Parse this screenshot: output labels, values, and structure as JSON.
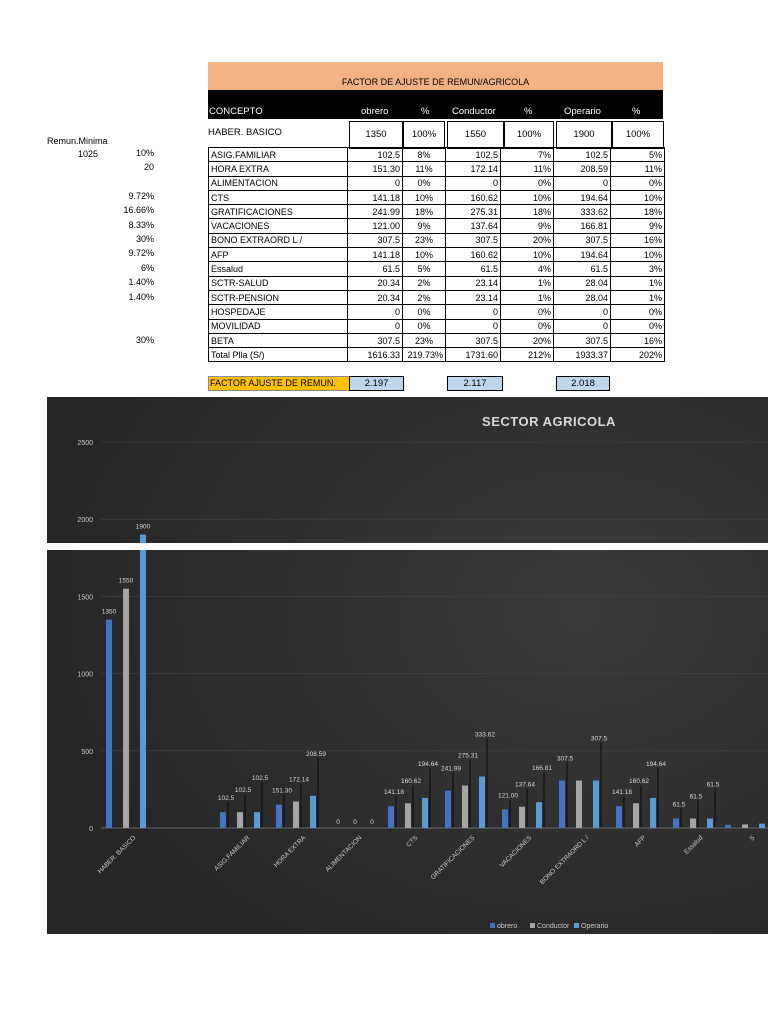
{
  "sheet": {
    "title": "FACTOR DE AJUSTE DE REMUN/AGRICOLA",
    "headers": [
      "CONCEPTO",
      "obrero",
      "%",
      "Conductor",
      "%",
      "Operario",
      "%"
    ],
    "remun_label": "Remun.Minima",
    "remun_value": "1025",
    "basic": {
      "concept": "HABER. BASICO",
      "values": [
        "1350",
        "100%",
        "1550",
        "100%",
        "1900",
        "100%"
      ]
    },
    "rows": [
      {
        "factor": "10%",
        "concept": "ASIG.FAMILIAR",
        "values": [
          "102.5",
          "8%",
          "102.5",
          "7%",
          "102.5",
          "5%"
        ]
      },
      {
        "factor": "20",
        "concept": "HORA EXTRA",
        "values": [
          "151.30",
          "11%",
          "172.14",
          "11%",
          "208.59",
          "11%"
        ]
      },
      {
        "factor": "",
        "concept": "ALIMENTACION",
        "values": [
          "0",
          "0%",
          "0",
          "0%",
          "0",
          "0%"
        ]
      },
      {
        "factor": "9.72%",
        "concept": "CTS",
        "values": [
          "141.18",
          "10%",
          "160.62",
          "10%",
          "194.64",
          "10%"
        ]
      },
      {
        "factor": "16.66%",
        "concept": "GRATIFICACIONES",
        "values": [
          "241.99",
          "18%",
          "275.31",
          "18%",
          "333.62",
          "18%"
        ]
      },
      {
        "factor": "8.33%",
        "concept": "VACACIONES",
        "values": [
          "121.00",
          "9%",
          "137.64",
          "9%",
          "166.81",
          "9%"
        ]
      },
      {
        "factor": "30%",
        "concept": "BONO EXTRAORD L /",
        "values": [
          "307.5",
          "23%",
          "307.5",
          "20%",
          "307.5",
          "16%"
        ]
      },
      {
        "factor": "9.72%",
        "concept": "AFP",
        "values": [
          "141.18",
          "10%",
          "160.62",
          "10%",
          "194.64",
          "10%"
        ]
      },
      {
        "factor": "6%",
        "concept": "Essalud",
        "values": [
          "61.5",
          "5%",
          "61.5",
          "4%",
          "61.5",
          "3%"
        ]
      },
      {
        "factor": "1.40%",
        "concept": "SCTR-SALUD",
        "values": [
          "20.34",
          "2%",
          "23.14",
          "1%",
          "28.04",
          "1%"
        ]
      },
      {
        "factor": "1.40%",
        "concept": "SCTR-PENSION",
        "values": [
          "20.34",
          "2%",
          "23.14",
          "1%",
          "28.04",
          "1%"
        ]
      },
      {
        "factor": "",
        "concept": "HOSPEDAJE",
        "values": [
          "0",
          "0%",
          "0",
          "0%",
          "0",
          "0%"
        ]
      },
      {
        "factor": "",
        "concept": "MOVILIDAD",
        "values": [
          "0",
          "0%",
          "0",
          "0%",
          "0",
          "0%"
        ]
      },
      {
        "factor": "30%",
        "concept": "BETA",
        "values": [
          "307.5",
          "23%",
          "307.5",
          "20%",
          "307.5",
          "16%"
        ]
      },
      {
        "factor": "",
        "concept": "Total Plla (S/)",
        "values": [
          "1616.33",
          "219.73%",
          "1731.60",
          "212%",
          "1933.37",
          "202%"
        ]
      }
    ],
    "factor_label": "FACTOR AJUSTE DE REMUN.",
    "factor_values": [
      "2.197",
      "2.117",
      "2.018"
    ]
  },
  "chart_data": {
    "type": "bar",
    "title": "SECTOR AGRICOLA",
    "categories": [
      "HABER. BASICO",
      "ASIG.FAMILIAR",
      "HORA EXTRA",
      "ALIMENTACION",
      "CTS",
      "GRATIFICACIONES",
      "VACACIONES",
      "BONO EXTRAORD L /",
      "AFP",
      "Essalud",
      "S"
    ],
    "series": [
      {
        "name": "obrero",
        "values": [
          1350,
          102.5,
          151.3,
          0,
          141.18,
          241.99,
          121.0,
          307.5,
          141.18,
          61.5,
          20.34
        ]
      },
      {
        "name": "Conductor",
        "values": [
          1550,
          102.5,
          172.14,
          0,
          160.62,
          275.31,
          137.64,
          307.5,
          160.62,
          61.5,
          23.14
        ]
      },
      {
        "name": "Operario",
        "values": [
          1900,
          102.5,
          208.59,
          0,
          194.64,
          333.62,
          166.81,
          307.5,
          194.64,
          61.5,
          28.04
        ]
      }
    ],
    "data_labels": [
      [
        "1350",
        "102.5",
        "151.30",
        "0",
        "141.18",
        "241.99",
        "121.00",
        "307.5",
        "141.18",
        "61.5",
        ""
      ],
      [
        "1550",
        "102.5",
        "172.14",
        "0",
        "160.62",
        "275.31",
        "137.64",
        "",
        "160.62",
        "61.5",
        ""
      ],
      [
        "1900",
        "102.5",
        "208.59",
        "0",
        "194.64",
        "333.62",
        "166.81",
        "307.5",
        "194.64",
        "61.5",
        ""
      ]
    ],
    "yticks": [
      "0",
      "500",
      "1000",
      "1500",
      "2000",
      "2500"
    ],
    "ylim": [
      0,
      2500
    ],
    "legend_position": "bottom",
    "grid": true,
    "colors": {
      "obrero": "#4472c4",
      "Conductor": "#a5a5a5",
      "Operario": "#5b9bd5",
      "background": "#2b2b2b",
      "text": "#d9d9d9"
    }
  }
}
